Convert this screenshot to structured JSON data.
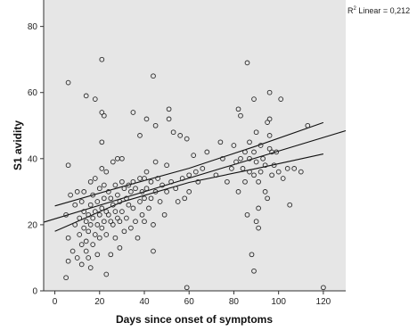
{
  "chart_data": {
    "type": "scatter",
    "xlabel": "Days since onset of symptoms",
    "ylabel": "S1 avidity",
    "annotation": {
      "prefix": "R",
      "superscript": "2",
      "text": " Linear = 0,212"
    },
    "xlim": [
      -5,
      130
    ],
    "ylim": [
      0,
      88
    ],
    "xticks": [
      0,
      20,
      40,
      60,
      80,
      100,
      120
    ],
    "yticks": [
      0,
      20,
      40,
      60,
      80
    ],
    "grid": false,
    "plot_background": "#e6e6e6",
    "regression": {
      "intercept": 21.8,
      "slope": 0.205
    },
    "ci_band": [
      {
        "x": 0,
        "lower": 18.0,
        "upper": 25.7
      },
      {
        "x": 30,
        "lower": 26.9,
        "upper": 31.5
      },
      {
        "x": 60,
        "lower": 32.8,
        "upper": 37.1
      },
      {
        "x": 90,
        "lower": 37.0,
        "upper": 43.8
      },
      {
        "x": 120,
        "lower": 41.4,
        "upper": 50.9
      }
    ],
    "series": [
      {
        "points": [
          [
            6,
            63
          ],
          [
            6,
            38
          ],
          [
            7,
            29
          ],
          [
            5,
            23
          ],
          [
            6,
            16
          ],
          [
            6,
            9
          ],
          [
            5,
            4
          ],
          [
            8,
            12
          ],
          [
            9,
            20
          ],
          [
            9,
            26
          ],
          [
            10,
            30
          ],
          [
            10,
            10
          ],
          [
            11,
            22
          ],
          [
            11,
            17
          ],
          [
            12,
            27
          ],
          [
            12,
            14
          ],
          [
            12,
            8
          ],
          [
            13,
            30
          ],
          [
            13,
            24
          ],
          [
            13,
            19
          ],
          [
            14,
            21
          ],
          [
            14,
            15
          ],
          [
            14,
            12
          ],
          [
            14,
            59
          ],
          [
            15,
            23
          ],
          [
            15,
            18
          ],
          [
            15,
            10
          ],
          [
            16,
            33
          ],
          [
            16,
            26
          ],
          [
            16,
            20
          ],
          [
            16,
            7
          ],
          [
            17,
            29
          ],
          [
            17,
            22
          ],
          [
            17,
            14
          ],
          [
            18,
            58
          ],
          [
            18,
            34
          ],
          [
            18,
            24
          ],
          [
            18,
            17
          ],
          [
            19,
            27
          ],
          [
            19,
            20
          ],
          [
            19,
            11
          ],
          [
            20,
            31
          ],
          [
            20,
            23
          ],
          [
            20,
            16
          ],
          [
            21,
            70
          ],
          [
            21,
            54
          ],
          [
            21,
            45
          ],
          [
            21,
            37
          ],
          [
            21,
            25
          ],
          [
            21,
            19
          ],
          [
            22,
            53
          ],
          [
            22,
            32
          ],
          [
            22,
            28
          ],
          [
            22,
            21
          ],
          [
            23,
            36
          ],
          [
            23,
            24
          ],
          [
            23,
            17
          ],
          [
            23,
            5
          ],
          [
            24,
            30
          ],
          [
            24,
            23
          ],
          [
            25,
            28
          ],
          [
            25,
            21
          ],
          [
            25,
            11
          ],
          [
            26,
            39
          ],
          [
            26,
            26
          ],
          [
            26,
            20
          ],
          [
            27,
            32
          ],
          [
            27,
            24
          ],
          [
            27,
            16
          ],
          [
            28,
            40
          ],
          [
            28,
            29
          ],
          [
            28,
            22
          ],
          [
            29,
            27
          ],
          [
            29,
            21
          ],
          [
            29,
            13
          ],
          [
            30,
            40
          ],
          [
            30,
            33
          ],
          [
            30,
            24
          ],
          [
            31,
            31
          ],
          [
            31,
            18
          ],
          [
            32,
            28
          ],
          [
            32,
            22
          ],
          [
            33,
            32
          ],
          [
            33,
            26
          ],
          [
            34,
            30
          ],
          [
            34,
            19
          ],
          [
            35,
            54
          ],
          [
            35,
            33
          ],
          [
            35,
            25
          ],
          [
            36,
            31
          ],
          [
            36,
            21
          ],
          [
            37,
            16
          ],
          [
            38,
            47
          ],
          [
            38,
            34
          ],
          [
            38,
            27
          ],
          [
            39,
            30
          ],
          [
            39,
            23
          ],
          [
            40,
            34
          ],
          [
            40,
            28
          ],
          [
            40,
            21
          ],
          [
            41,
            52
          ],
          [
            41,
            36
          ],
          [
            41,
            31
          ],
          [
            42,
            25
          ],
          [
            43,
            33
          ],
          [
            43,
            28
          ],
          [
            44,
            65
          ],
          [
            44,
            20
          ],
          [
            44,
            12
          ],
          [
            45,
            50
          ],
          [
            45,
            39
          ],
          [
            45,
            30
          ],
          [
            46,
            34
          ],
          [
            47,
            27
          ],
          [
            48,
            32
          ],
          [
            49,
            23
          ],
          [
            50,
            38
          ],
          [
            50,
            30
          ],
          [
            51,
            52
          ],
          [
            51,
            55
          ],
          [
            52,
            33
          ],
          [
            53,
            48
          ],
          [
            54,
            31
          ],
          [
            55,
            27
          ],
          [
            56,
            47
          ],
          [
            57,
            34
          ],
          [
            58,
            28
          ],
          [
            59,
            1
          ],
          [
            59,
            46
          ],
          [
            60,
            35
          ],
          [
            60,
            30
          ],
          [
            62,
            41
          ],
          [
            63,
            36
          ],
          [
            64,
            33
          ],
          [
            66,
            37
          ],
          [
            68,
            42
          ],
          [
            72,
            35
          ],
          [
            74,
            45
          ],
          [
            75,
            40
          ],
          [
            77,
            33
          ],
          [
            79,
            37
          ],
          [
            80,
            44
          ],
          [
            81,
            39
          ],
          [
            82,
            55
          ],
          [
            82,
            30
          ],
          [
            83,
            53
          ],
          [
            83,
            40
          ],
          [
            84,
            37
          ],
          [
            85,
            42
          ],
          [
            85,
            33
          ],
          [
            86,
            69
          ],
          [
            86,
            23
          ],
          [
            87,
            45
          ],
          [
            87,
            40
          ],
          [
            87,
            36
          ],
          [
            88,
            11
          ],
          [
            89,
            58
          ],
          [
            89,
            42
          ],
          [
            89,
            35
          ],
          [
            89,
            6
          ],
          [
            90,
            48
          ],
          [
            90,
            39
          ],
          [
            90,
            21
          ],
          [
            91,
            33
          ],
          [
            91,
            25
          ],
          [
            91,
            19
          ],
          [
            92,
            44
          ],
          [
            92,
            36
          ],
          [
            93,
            40
          ],
          [
            94,
            38
          ],
          [
            94,
            30
          ],
          [
            95,
            51
          ],
          [
            95,
            28
          ],
          [
            96,
            60
          ],
          [
            96,
            52
          ],
          [
            96,
            47
          ],
          [
            96,
            43
          ],
          [
            97,
            42
          ],
          [
            97,
            35
          ],
          [
            98,
            38
          ],
          [
            99,
            42
          ],
          [
            100,
            36
          ],
          [
            101,
            58
          ],
          [
            102,
            34
          ],
          [
            104,
            37
          ],
          [
            105,
            26
          ],
          [
            107,
            37
          ],
          [
            110,
            36
          ],
          [
            113,
            50
          ],
          [
            120,
            1
          ]
        ]
      }
    ]
  }
}
